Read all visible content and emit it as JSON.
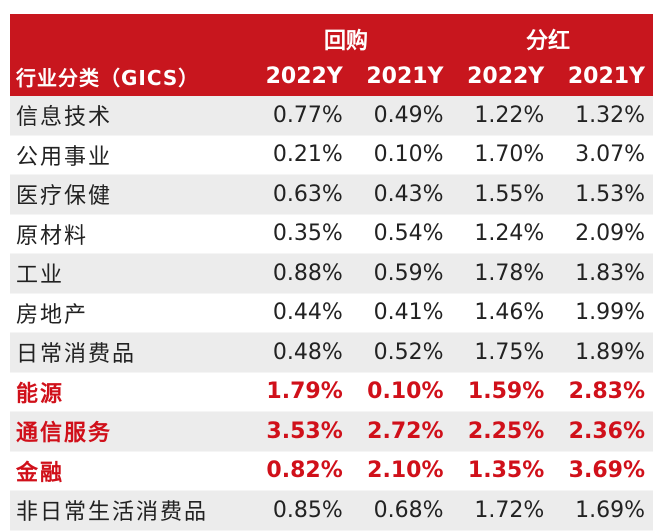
{
  "header": {
    "group_buyback": "回购",
    "group_dividend": "分红",
    "col_sector": "行业分类（GICS）",
    "col_1": "2022Y",
    "col_2": "2021Y",
    "col_3": "2022Y",
    "col_4": "2021Y"
  },
  "colors": {
    "header_bg": "#c8161e",
    "highlight": "#d0101a"
  },
  "rows": [
    {
      "name": "信息技术",
      "v": [
        "0.77%",
        "0.49%",
        "1.22%",
        "1.32%"
      ],
      "highlight": false
    },
    {
      "name": "公用事业",
      "v": [
        "0.21%",
        "0.10%",
        "1.70%",
        "3.07%"
      ],
      "highlight": false
    },
    {
      "name": "医疗保健",
      "v": [
        "0.63%",
        "0.43%",
        "1.55%",
        "1.53%"
      ],
      "highlight": false
    },
    {
      "name": "原材料",
      "v": [
        "0.35%",
        "0.54%",
        "1.24%",
        "2.09%"
      ],
      "highlight": false
    },
    {
      "name": "工业",
      "v": [
        "0.88%",
        "0.59%",
        "1.78%",
        "1.83%"
      ],
      "highlight": false
    },
    {
      "name": "房地产",
      "v": [
        "0.44%",
        "0.41%",
        "1.46%",
        "1.99%"
      ],
      "highlight": false
    },
    {
      "name": "日常消费品",
      "v": [
        "0.48%",
        "0.52%",
        "1.75%",
        "1.89%"
      ],
      "highlight": false
    },
    {
      "name": "能源",
      "v": [
        "1.79%",
        "0.10%",
        "1.59%",
        "2.83%"
      ],
      "highlight": true
    },
    {
      "name": "通信服务",
      "v": [
        "3.53%",
        "2.72%",
        "2.25%",
        "2.36%"
      ],
      "highlight": true
    },
    {
      "name": "金融",
      "v": [
        "0.82%",
        "2.10%",
        "1.35%",
        "3.69%"
      ],
      "highlight": true
    },
    {
      "name": "非日常生活消费品",
      "v": [
        "0.85%",
        "0.68%",
        "1.72%",
        "1.69%"
      ],
      "highlight": false
    }
  ]
}
